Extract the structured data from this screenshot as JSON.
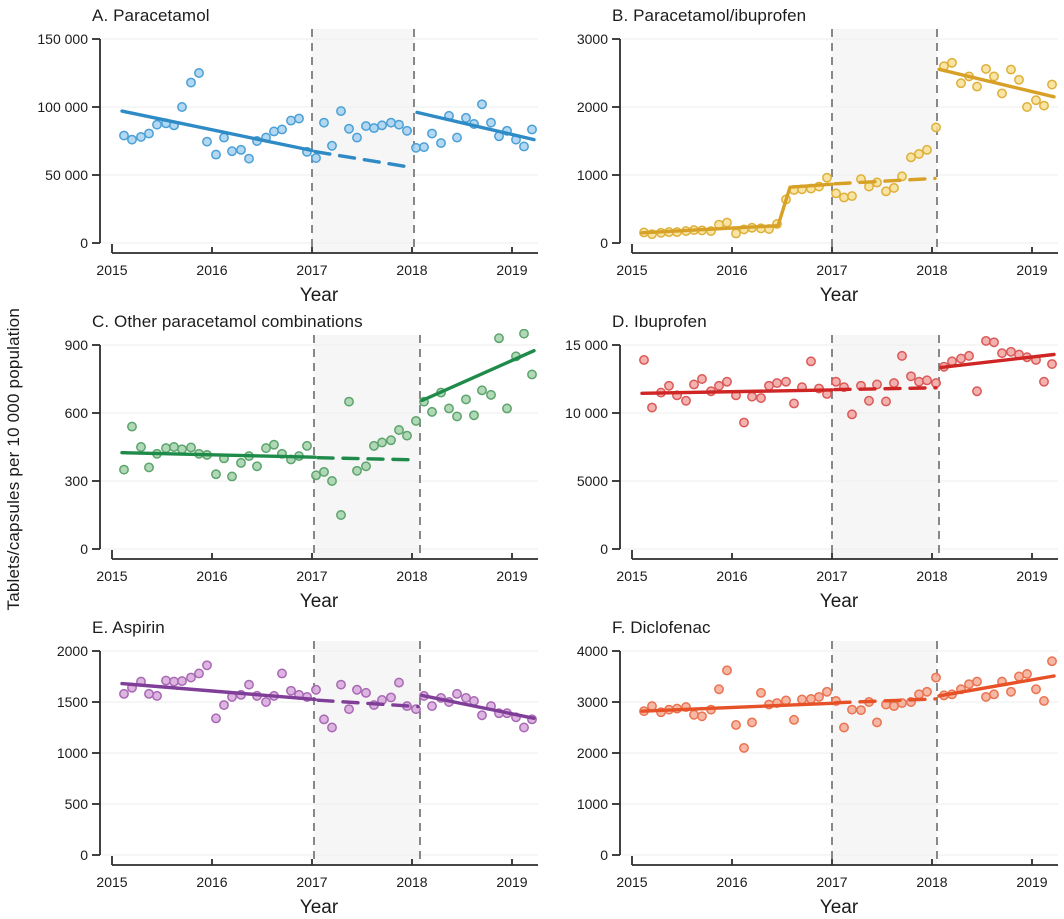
{
  "figure": {
    "band_color": "#f6f6f6",
    "grid_color": "#ededed",
    "dashed_line_color": "#7c7c7c",
    "axis_color": "#2d2d2d",
    "text_color": "#1b1b1b"
  },
  "chart_data": {
    "type": "scatter",
    "x_label": "Year",
    "y_label": "Tablets/capsules per 10 000 population",
    "x_ticks": [
      2015,
      2016,
      2017,
      2018,
      2019
    ],
    "x_tick_labels": [
      "2015",
      "2016",
      "2017",
      "2018",
      "2019"
    ],
    "x_domain": [
      2014.95,
      2019.3
    ],
    "grid": "horizontal",
    "legend": "none",
    "x": [
      2015.12,
      2015.2,
      2015.29,
      2015.37,
      2015.45,
      2015.54,
      2015.62,
      2015.7,
      2015.79,
      2015.87,
      2015.95,
      2016.04,
      2016.12,
      2016.2,
      2016.29,
      2016.37,
      2016.45,
      2016.54,
      2016.62,
      2016.7,
      2016.79,
      2016.87,
      2016.95,
      2017.04,
      2017.12,
      2017.2,
      2017.29,
      2017.37,
      2017.45,
      2017.54,
      2017.62,
      2017.7,
      2017.79,
      2017.87,
      2017.95,
      2018.04,
      2018.12,
      2018.2,
      2018.29,
      2018.37,
      2018.45,
      2018.54,
      2018.62,
      2018.7,
      2018.79,
      2018.87,
      2018.95,
      2019.04,
      2019.12,
      2019.2
    ],
    "panels": [
      {
        "title": "A. Paracetamol",
        "color": "#2e8bc5",
        "point_fill": "#a7d1ee",
        "point_stroke": "#4aa0d6",
        "ylim": [
          0,
          150000
        ],
        "yticks": [
          0,
          50000,
          100000,
          150000
        ],
        "ytick_labels": [
          "0",
          "50 000",
          "100 000",
          "150 000"
        ],
        "intervention_lines": [
          2017.0,
          2018.02
        ],
        "trend_pre": [
          [
            2015.1,
            97000
          ],
          [
            2017.0,
            68000
          ]
        ],
        "trend_counterfactual": [
          [
            2017.03,
            67200
          ],
          [
            2018.0,
            55500
          ]
        ],
        "trend_post": [
          [
            2018.05,
            96000
          ],
          [
            2019.22,
            76000
          ]
        ],
        "values": [
          79000,
          76000,
          78000,
          80500,
          87000,
          88000,
          86500,
          100000,
          118000,
          125000,
          74500,
          65000,
          77500,
          67500,
          68500,
          62000,
          75000,
          77500,
          82000,
          83500,
          90000,
          91500,
          67000,
          62500,
          88500,
          71500,
          97000,
          84000,
          77500,
          86000,
          84500,
          86500,
          88500,
          87000,
          82500,
          70000,
          70500,
          80500,
          73500,
          93500,
          77500,
          92000,
          87500,
          102000,
          88500,
          78500,
          82500,
          76000,
          71000,
          83500
        ]
      },
      {
        "title": "B. Paracetamol/ibuprofen",
        "color": "#d7a127",
        "point_fill": "#f7df93",
        "point_stroke": "#deb03a",
        "ylim": [
          0,
          3000
        ],
        "yticks": [
          0,
          1000,
          2000,
          3000
        ],
        "ytick_labels": [
          "0",
          "1000",
          "2000",
          "3000"
        ],
        "intervention_lines": [
          2017.0,
          2018.05
        ],
        "trend_pre": [
          [
            2015.1,
            150
          ],
          [
            2016.46,
            255
          ],
          [
            2016.58,
            820
          ],
          [
            2017.0,
            865
          ]
        ],
        "trend_counterfactual": [
          [
            2017.03,
            870
          ],
          [
            2018.03,
            950
          ]
        ],
        "trend_post": [
          [
            2018.07,
            2555
          ],
          [
            2019.22,
            2150
          ]
        ],
        "values": [
          155,
          130,
          150,
          160,
          160,
          175,
          190,
          185,
          175,
          270,
          300,
          140,
          200,
          225,
          215,
          205,
          280,
          640,
          780,
          790,
          800,
          830,
          960,
          730,
          670,
          690,
          940,
          830,
          890,
          760,
          810,
          980,
          1260,
          1310,
          1370,
          1700,
          2600,
          2650,
          2350,
          2450,
          2300,
          2560,
          2450,
          2200,
          2550,
          2400,
          2000,
          2100,
          2020,
          2330
        ]
      },
      {
        "title": "C. Other paracetamol combinations",
        "color": "#1f8b4a",
        "point_fill": "#a3d2ab",
        "point_stroke": "#5ca46c",
        "ylim": [
          0,
          900
        ],
        "yticks": [
          0,
          300,
          600,
          900
        ],
        "ytick_labels": [
          "0",
          "300",
          "600",
          "900"
        ],
        "intervention_lines": [
          2017.02,
          2018.08
        ],
        "trend_pre": [
          [
            2015.1,
            425
          ],
          [
            2017.03,
            405
          ]
        ],
        "trend_counterfactual": [
          [
            2017.06,
            403
          ],
          [
            2018.05,
            393
          ]
        ],
        "trend_post": [
          [
            2018.1,
            655
          ],
          [
            2019.22,
            875
          ]
        ],
        "values": [
          350,
          540,
          450,
          360,
          420,
          445,
          450,
          440,
          448,
          420,
          415,
          330,
          400,
          320,
          380,
          410,
          365,
          445,
          460,
          420,
          395,
          410,
          455,
          325,
          340,
          300,
          150,
          650,
          345,
          365,
          455,
          470,
          480,
          525,
          500,
          565,
          650,
          605,
          690,
          620,
          585,
          660,
          590,
          700,
          680,
          930,
          620,
          850,
          950,
          770
        ]
      },
      {
        "title": "D. Ibuprofen",
        "color": "#cf2524",
        "point_fill": "#f1a3a1",
        "point_stroke": "#da5a58",
        "ylim": [
          0,
          15000
        ],
        "yticks": [
          0,
          5000,
          10000,
          15000
        ],
        "ytick_labels": [
          "0",
          "5000",
          "10 000",
          "15 000"
        ],
        "intervention_lines": [
          2017.0,
          2018.07
        ],
        "trend_pre": [
          [
            2015.1,
            11450
          ],
          [
            2017.0,
            11700
          ]
        ],
        "trend_counterfactual": [
          [
            2017.03,
            11720
          ],
          [
            2018.04,
            11850
          ]
        ],
        "trend_post": [
          [
            2018.09,
            13350
          ],
          [
            2019.22,
            14300
          ]
        ],
        "values": [
          13900,
          10400,
          11500,
          12000,
          11300,
          10900,
          12100,
          12500,
          11600,
          12000,
          12300,
          11300,
          9300,
          11200,
          11100,
          12000,
          12200,
          12300,
          10700,
          11900,
          13800,
          11800,
          11400,
          12300,
          11900,
          9900,
          12000,
          10900,
          12100,
          10850,
          12200,
          14200,
          12700,
          12300,
          12400,
          12200,
          13400,
          13800,
          14000,
          14200,
          11600,
          15300,
          15200,
          14400,
          14500,
          14300,
          14100,
          13900,
          12300,
          13600
        ]
      },
      {
        "title": "E. Aspirin",
        "color": "#7f3e97",
        "point_fill": "#d7a8dc",
        "point_stroke": "#a968b4",
        "ylim": [
          0,
          2000
        ],
        "yticks": [
          0,
          500,
          1000,
          1500,
          2000
        ],
        "ytick_labels": [
          "0",
          "500",
          "1000",
          "1500",
          "2000"
        ],
        "intervention_lines": [
          2017.02,
          2018.08
        ],
        "trend_pre": [
          [
            2015.1,
            1680
          ],
          [
            2017.03,
            1525
          ]
        ],
        "trend_counterfactual": [
          [
            2017.06,
            1518
          ],
          [
            2018.06,
            1455
          ]
        ],
        "trend_post": [
          [
            2018.1,
            1565
          ],
          [
            2019.22,
            1340
          ]
        ],
        "values": [
          1580,
          1640,
          1700,
          1580,
          1560,
          1710,
          1700,
          1705,
          1740,
          1780,
          1860,
          1340,
          1470,
          1550,
          1570,
          1670,
          1560,
          1500,
          1560,
          1780,
          1610,
          1570,
          1550,
          1620,
          1330,
          1250,
          1670,
          1430,
          1620,
          1590,
          1470,
          1520,
          1545,
          1690,
          1460,
          1430,
          1560,
          1460,
          1540,
          1500,
          1580,
          1540,
          1510,
          1370,
          1460,
          1390,
          1390,
          1350,
          1250,
          1330
        ]
      },
      {
        "title": "F. Diclofenac",
        "color": "#e65127",
        "point_fill": "#f5ab95",
        "point_stroke": "#ea7350",
        "ylim": [
          0,
          4000
        ],
        "yticks": [
          0,
          1000,
          2000,
          3000,
          4000
        ],
        "ytick_labels": [
          "0",
          "1000",
          "2000",
          "3000",
          "4000"
        ],
        "intervention_lines": [
          2017.0,
          2018.05
        ],
        "trend_pre": [
          [
            2015.1,
            2820
          ],
          [
            2017.0,
            2975
          ]
        ],
        "trend_counterfactual": [
          [
            2017.03,
            2985
          ],
          [
            2018.03,
            3060
          ]
        ],
        "trend_post": [
          [
            2018.07,
            3120
          ],
          [
            2019.22,
            3510
          ]
        ],
        "values": [
          2820,
          2920,
          2800,
          2850,
          2870,
          2900,
          2750,
          2720,
          2850,
          3250,
          3620,
          2550,
          2100,
          2600,
          3180,
          2950,
          2980,
          3030,
          2650,
          3050,
          3060,
          3100,
          3200,
          3020,
          2500,
          2850,
          2840,
          3000,
          2600,
          2950,
          2920,
          2980,
          3000,
          3150,
          3200,
          3480,
          3130,
          3150,
          3250,
          3350,
          3400,
          3100,
          3150,
          3400,
          3200,
          3500,
          3550,
          3250,
          3020,
          3800
        ]
      }
    ]
  }
}
